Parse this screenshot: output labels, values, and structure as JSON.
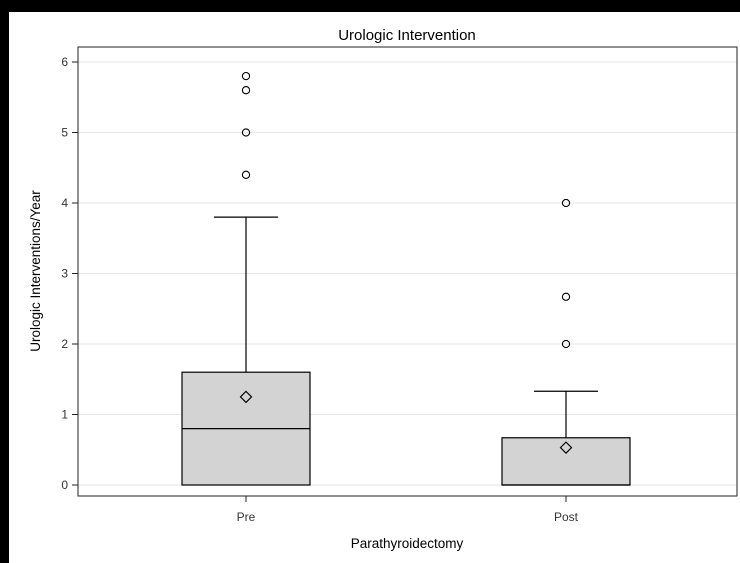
{
  "chart_data": {
    "type": "box",
    "title": "Urologic Intervention",
    "xlabel": "Parathyroidectomy",
    "ylabel": "Urologic Interventions/Year",
    "ylim": [
      -0.2,
      6.2
    ],
    "yticks": [
      0,
      1,
      2,
      3,
      4,
      5,
      6
    ],
    "ytick_labels": [
      "0",
      "1",
      "2",
      "3",
      "4",
      "5",
      "6"
    ],
    "grid": true,
    "legend": "none",
    "box_fill": "#d3d3d3",
    "line_color": "#000000",
    "categories": [
      "Pre",
      "Post"
    ],
    "boxes": [
      {
        "category": "Pre",
        "min": 0,
        "q1": 0,
        "median": 0.8,
        "q3": 1.6,
        "max": 3.8,
        "mean": 1.25,
        "outliers": [
          4.4,
          5.0,
          5.6,
          5.8
        ]
      },
      {
        "category": "Post",
        "min": 0,
        "q1": 0,
        "median": 0,
        "q3": 0.67,
        "max": 1.33,
        "mean": 0.53,
        "outliers": [
          2.0,
          2.67,
          4.0
        ]
      }
    ]
  }
}
